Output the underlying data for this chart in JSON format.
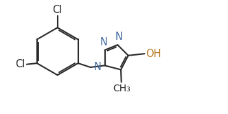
{
  "bg_color": "#ffffff",
  "line_color": "#2a2a2a",
  "N_color": "#4169a0",
  "O_color": "#b87820",
  "bond_lw": 1.5,
  "font_size": 10.5,
  "figsize": [
    3.32,
    1.66
  ],
  "dpi": 100,
  "xlim": [
    0.0,
    10.0
  ],
  "ylim": [
    0.0,
    5.0
  ]
}
